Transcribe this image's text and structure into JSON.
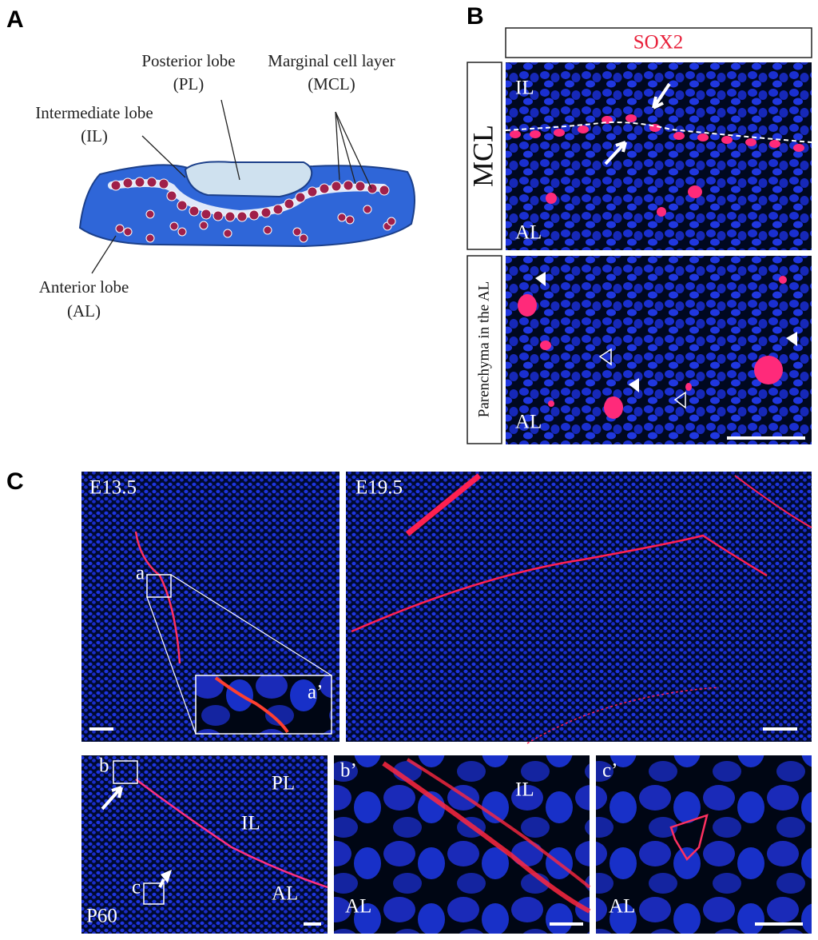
{
  "panel_labels": [
    "A",
    "B",
    "C"
  ],
  "diagram": {
    "posterior_lobe": [
      "Posterior lobe",
      "(PL)"
    ],
    "marginal_cell_layer": [
      "Marginal cell layer",
      "(MCL)"
    ],
    "intermediate_lobe": [
      "Intermediate lobe",
      "(IL)"
    ],
    "anterior_lobe": [
      "Anterior lobe",
      "(AL)"
    ]
  },
  "panel_b": {
    "stain": "SOX2",
    "rows": [
      {
        "label": "MCL",
        "top": "IL",
        "bottom": "AL"
      },
      {
        "label": "Parenchyma in the AL",
        "bottom": "AL"
      }
    ]
  },
  "panel_c": {
    "images": [
      {
        "stage": "E13.5",
        "box": "a",
        "inset": "a’"
      },
      {
        "stage": "E19.5"
      },
      {
        "stage": "P60",
        "boxes": [
          "b",
          "c"
        ],
        "regions": [
          "PL",
          "IL",
          "AL"
        ]
      },
      {
        "label": "b’",
        "regions": [
          "IL",
          "AL"
        ]
      },
      {
        "label": "c’",
        "regions": [
          "AL"
        ]
      }
    ]
  }
}
